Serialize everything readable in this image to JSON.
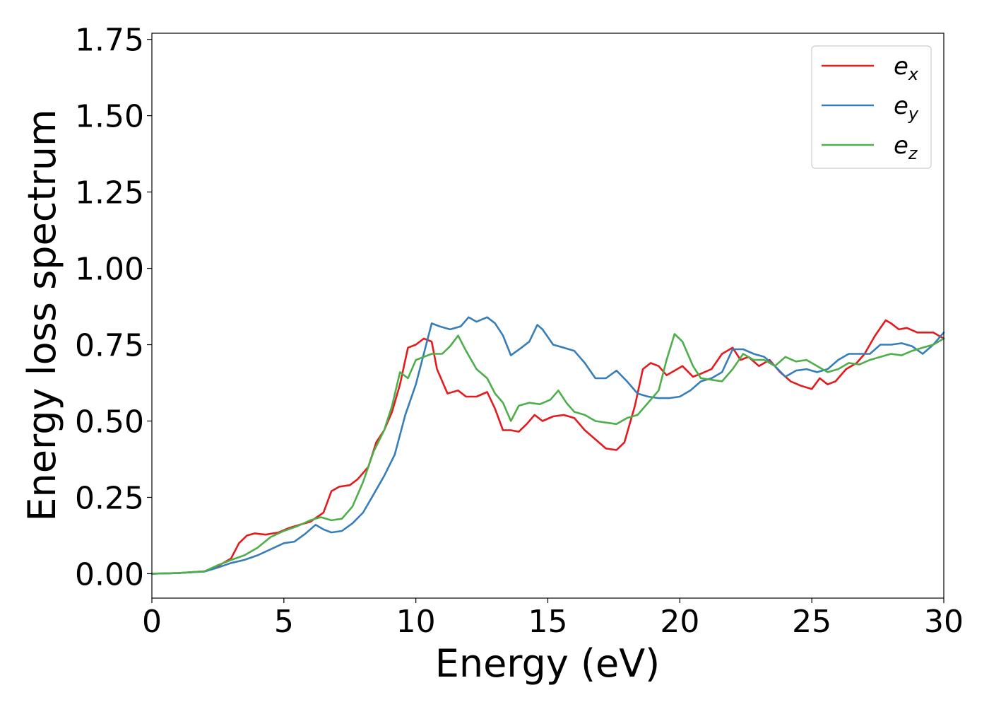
{
  "chart_data": {
    "type": "line",
    "title": "",
    "xlabel": "Energy (eV)",
    "ylabel": "Energy loss spectrum",
    "xlim": [
      0,
      30
    ],
    "ylim": [
      -0.08,
      1.77
    ],
    "xticks": [
      0,
      5,
      10,
      15,
      20,
      25,
      30
    ],
    "xtick_labels": [
      "0",
      "5",
      "10",
      "15",
      "20",
      "25",
      "30"
    ],
    "yticks": [
      0.0,
      0.25,
      0.5,
      0.75,
      1.0,
      1.25,
      1.5,
      1.75
    ],
    "ytick_labels": [
      "0.00",
      "0.25",
      "0.50",
      "0.75",
      "1.00",
      "1.25",
      "1.50",
      "1.75"
    ],
    "grid": false,
    "legend_position": "top-right",
    "series": [
      {
        "name": "e_x",
        "legend_base": "e",
        "legend_sub": "x",
        "color": "#e41a1c",
        "x": [
          0,
          1,
          2,
          2.5,
          3,
          3.3,
          3.6,
          3.9,
          4.3,
          4.8,
          5.2,
          5.6,
          6,
          6.5,
          6.8,
          7.1,
          7.5,
          7.8,
          8.2,
          8.5,
          8.8,
          9.1,
          9.4,
          9.7,
          10,
          10.3,
          10.6,
          10.8,
          11.2,
          11.6,
          11.9,
          12.3,
          12.7,
          13,
          13.3,
          13.6,
          13.9,
          14.2,
          14.5,
          14.8,
          15.2,
          15.6,
          16,
          16.4,
          16.8,
          17.2,
          17.6,
          17.9,
          18.3,
          18.6,
          18.9,
          19.2,
          19.5,
          19.8,
          20.1,
          20.5,
          20.8,
          21.2,
          21.6,
          22,
          22.3,
          22.6,
          23,
          23.4,
          23.8,
          24.2,
          24.6,
          25,
          25.3,
          25.6,
          25.9,
          26.3,
          26.7,
          27,
          27.4,
          27.8,
          28,
          28.3,
          28.6,
          29,
          29.3,
          29.6,
          30
        ],
        "y": [
          0,
          0.002,
          0.008,
          0.025,
          0.05,
          0.1,
          0.125,
          0.132,
          0.128,
          0.135,
          0.15,
          0.16,
          0.17,
          0.2,
          0.27,
          0.285,
          0.29,
          0.31,
          0.35,
          0.43,
          0.47,
          0.53,
          0.62,
          0.74,
          0.75,
          0.77,
          0.76,
          0.67,
          0.59,
          0.6,
          0.58,
          0.58,
          0.595,
          0.54,
          0.47,
          0.47,
          0.465,
          0.49,
          0.52,
          0.5,
          0.515,
          0.52,
          0.51,
          0.47,
          0.44,
          0.41,
          0.405,
          0.43,
          0.55,
          0.67,
          0.69,
          0.68,
          0.65,
          0.665,
          0.68,
          0.645,
          0.655,
          0.67,
          0.72,
          0.74,
          0.7,
          0.71,
          0.68,
          0.7,
          0.66,
          0.63,
          0.615,
          0.605,
          0.64,
          0.62,
          0.63,
          0.67,
          0.69,
          0.72,
          0.78,
          0.83,
          0.82,
          0.8,
          0.805,
          0.79,
          0.79,
          0.79,
          0.77
        ]
      },
      {
        "name": "e_y",
        "legend_base": "e",
        "legend_sub": "y",
        "color": "#377eb8",
        "x": [
          0,
          1,
          2,
          2.5,
          3,
          3.5,
          4,
          4.5,
          5,
          5.4,
          5.8,
          6.2,
          6.5,
          6.8,
          7.2,
          7.6,
          8,
          8.4,
          8.8,
          9.2,
          9.6,
          10,
          10.3,
          10.6,
          10.9,
          11.3,
          11.7,
          12,
          12.3,
          12.7,
          13,
          13.3,
          13.6,
          14,
          14.3,
          14.6,
          14.8,
          15.2,
          15.6,
          16,
          16.4,
          16.8,
          17.2,
          17.6,
          18,
          18.4,
          18.8,
          19.2,
          19.6,
          20,
          20.4,
          20.8,
          21.2,
          21.6,
          22,
          22.4,
          22.8,
          23.2,
          23.6,
          24,
          24.4,
          24.8,
          25.2,
          25.6,
          26,
          26.4,
          26.8,
          27.2,
          27.6,
          28,
          28.4,
          28.8,
          29.2,
          29.6,
          30
        ],
        "y": [
          0,
          0.002,
          0.007,
          0.02,
          0.035,
          0.045,
          0.06,
          0.08,
          0.1,
          0.105,
          0.13,
          0.16,
          0.145,
          0.135,
          0.14,
          0.165,
          0.2,
          0.26,
          0.32,
          0.39,
          0.52,
          0.62,
          0.72,
          0.82,
          0.81,
          0.8,
          0.81,
          0.84,
          0.825,
          0.84,
          0.82,
          0.78,
          0.715,
          0.74,
          0.76,
          0.815,
          0.8,
          0.75,
          0.74,
          0.73,
          0.69,
          0.64,
          0.64,
          0.665,
          0.63,
          0.59,
          0.58,
          0.575,
          0.575,
          0.58,
          0.6,
          0.63,
          0.64,
          0.66,
          0.735,
          0.735,
          0.72,
          0.71,
          0.68,
          0.645,
          0.665,
          0.67,
          0.66,
          0.67,
          0.7,
          0.72,
          0.72,
          0.72,
          0.75,
          0.75,
          0.755,
          0.745,
          0.72,
          0.75,
          0.79
        ]
      },
      {
        "name": "e_z",
        "legend_base": "e",
        "legend_sub": "z",
        "color": "#4daf4a",
        "x": [
          0,
          1,
          2,
          2.5,
          3,
          3.5,
          4,
          4.5,
          5,
          5.5,
          6,
          6.4,
          6.8,
          7.2,
          7.6,
          8,
          8.4,
          8.8,
          9.1,
          9.4,
          9.7,
          10,
          10.3,
          10.6,
          11,
          11.3,
          11.6,
          11.9,
          12.3,
          12.7,
          13,
          13.3,
          13.6,
          13.9,
          14.3,
          14.7,
          15.1,
          15.4,
          15.7,
          16,
          16.4,
          16.8,
          17.2,
          17.6,
          18,
          18.4,
          18.8,
          19.2,
          19.5,
          19.8,
          20.1,
          20.5,
          20.8,
          21.2,
          21.6,
          22,
          22.4,
          22.8,
          23.2,
          23.6,
          24,
          24.4,
          24.8,
          25.2,
          25.6,
          26,
          26.4,
          26.8,
          27.2,
          27.6,
          28,
          28.4,
          28.8,
          29.2,
          29.6,
          30
        ],
        "y": [
          0,
          0.002,
          0.008,
          0.028,
          0.045,
          0.06,
          0.085,
          0.12,
          0.14,
          0.155,
          0.175,
          0.185,
          0.175,
          0.18,
          0.22,
          0.3,
          0.4,
          0.47,
          0.55,
          0.66,
          0.64,
          0.7,
          0.71,
          0.72,
          0.72,
          0.745,
          0.78,
          0.73,
          0.67,
          0.64,
          0.59,
          0.56,
          0.5,
          0.55,
          0.56,
          0.555,
          0.57,
          0.6,
          0.56,
          0.53,
          0.52,
          0.5,
          0.495,
          0.49,
          0.51,
          0.52,
          0.56,
          0.6,
          0.7,
          0.785,
          0.76,
          0.68,
          0.64,
          0.635,
          0.63,
          0.67,
          0.72,
          0.7,
          0.7,
          0.68,
          0.71,
          0.695,
          0.7,
          0.68,
          0.66,
          0.67,
          0.69,
          0.685,
          0.7,
          0.71,
          0.72,
          0.715,
          0.73,
          0.74,
          0.75,
          0.77
        ]
      }
    ]
  }
}
